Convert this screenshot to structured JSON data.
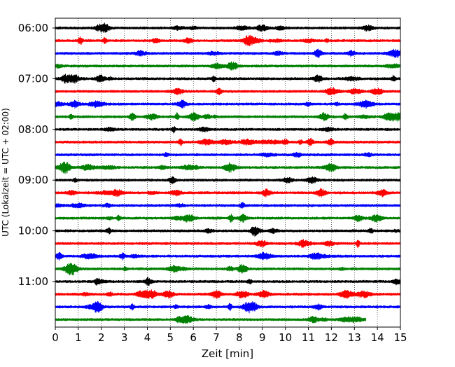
{
  "chart_data": {
    "type": "line",
    "title": "",
    "xlabel": "Zeit  [min]",
    "ylabel": "UTC (Lokalzeit = UTC + 02:00)",
    "xlim": [
      0,
      15
    ],
    "x_ticks": [
      "0",
      "1",
      "2",
      "3",
      "4",
      "5",
      "6",
      "7",
      "8",
      "9",
      "10",
      "11",
      "12",
      "13",
      "14",
      "15"
    ],
    "y_tick_labels": [
      "06:00",
      "07:00",
      "08:00",
      "09:00",
      "10:00",
      "11:00"
    ],
    "grid": "vertical dotted",
    "trace_colors": [
      "#000000",
      "#ff0000",
      "#0000ff",
      "#008000"
    ],
    "traces": [
      {
        "start": "06:00",
        "end_min": 15
      },
      {
        "start": "06:15",
        "end_min": 15
      },
      {
        "start": "06:30",
        "end_min": 15
      },
      {
        "start": "06:45",
        "end_min": 15
      },
      {
        "start": "07:00",
        "end_min": 15
      },
      {
        "start": "07:15",
        "end_min": 15
      },
      {
        "start": "07:30",
        "end_min": 15
      },
      {
        "start": "07:45",
        "end_min": 15
      },
      {
        "start": "08:00",
        "end_min": 15
      },
      {
        "start": "08:15",
        "end_min": 15
      },
      {
        "start": "08:30",
        "end_min": 15
      },
      {
        "start": "08:45",
        "end_min": 15
      },
      {
        "start": "09:00",
        "end_min": 15
      },
      {
        "start": "09:15",
        "end_min": 15
      },
      {
        "start": "09:30",
        "end_min": 15
      },
      {
        "start": "09:45",
        "end_min": 15
      },
      {
        "start": "10:00",
        "end_min": 15
      },
      {
        "start": "10:15",
        "end_min": 15
      },
      {
        "start": "10:30",
        "end_min": 15
      },
      {
        "start": "10:45",
        "end_min": 15
      },
      {
        "start": "11:00",
        "end_min": 15
      },
      {
        "start": "11:15",
        "end_min": 15
      },
      {
        "start": "11:30",
        "end_min": 15
      },
      {
        "start": "11:45",
        "end_min": 13.5
      }
    ]
  }
}
